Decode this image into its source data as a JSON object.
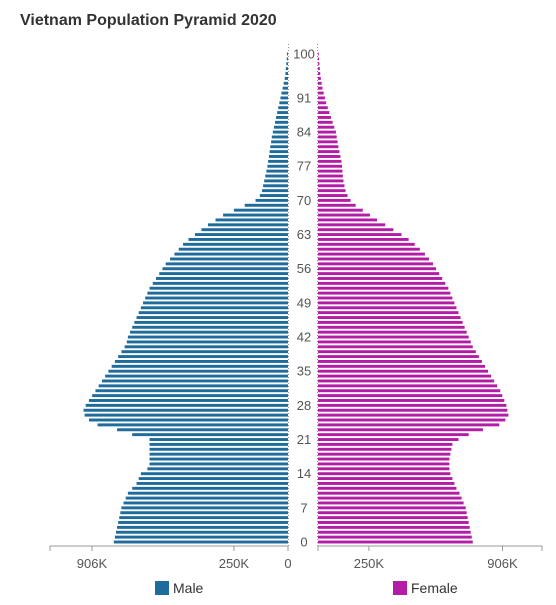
{
  "chart_data": {
    "type": "bar",
    "orientation": "horizontal",
    "title": "Vietnam Population Pyramid 2020",
    "x_tick_labels": {
      "male": [
        "906K",
        "250K",
        "0"
      ],
      "female": [
        "250K",
        "906K"
      ]
    },
    "x_tick_values": {
      "male": [
        906000,
        250000,
        0
      ],
      "female": [
        250000,
        906000
      ]
    },
    "xlim": [
      0,
      1100000
    ],
    "y_tick_labels": [
      "0",
      "7",
      "14",
      "21",
      "28",
      "35",
      "42",
      "49",
      "56",
      "63",
      "70",
      "77",
      "84",
      "91",
      "100"
    ],
    "y_tick_values": [
      0,
      7,
      14,
      21,
      28,
      35,
      42,
      49,
      56,
      63,
      70,
      77,
      84,
      91,
      100
    ],
    "ages": [
      0,
      1,
      2,
      3,
      4,
      5,
      6,
      7,
      8,
      9,
      10,
      11,
      12,
      13,
      14,
      15,
      16,
      17,
      18,
      19,
      20,
      21,
      22,
      23,
      24,
      25,
      26,
      27,
      28,
      29,
      30,
      31,
      32,
      33,
      34,
      35,
      36,
      37,
      38,
      39,
      40,
      41,
      42,
      43,
      44,
      45,
      46,
      47,
      48,
      49,
      50,
      51,
      52,
      53,
      54,
      55,
      56,
      57,
      58,
      59,
      60,
      61,
      62,
      63,
      64,
      65,
      66,
      67,
      68,
      69,
      70,
      71,
      72,
      73,
      74,
      75,
      76,
      77,
      78,
      79,
      80,
      81,
      82,
      83,
      84,
      85,
      86,
      87,
      88,
      89,
      90,
      91,
      92,
      93,
      94,
      95,
      96,
      97,
      98,
      99,
      100
    ],
    "legend": {
      "position": "bottom",
      "entries": [
        "Male",
        "Female"
      ]
    },
    "series": [
      {
        "name": "Male",
        "color": "#1f6b9b",
        "values": [
          805000,
          800000,
          795000,
          790000,
          785000,
          780000,
          775000,
          770000,
          760000,
          750000,
          740000,
          720000,
          700000,
          690000,
          680000,
          650000,
          640000,
          640000,
          640000,
          640000,
          640000,
          640000,
          720000,
          790000,
          880000,
          920000,
          940000,
          945000,
          935000,
          920000,
          905000,
          890000,
          875000,
          860000,
          845000,
          830000,
          815000,
          800000,
          785000,
          770000,
          755000,
          745000,
          740000,
          730000,
          720000,
          710000,
          700000,
          690000,
          680000,
          670000,
          660000,
          650000,
          640000,
          625000,
          610000,
          595000,
          580000,
          565000,
          545000,
          525000,
          505000,
          485000,
          460000,
          430000,
          400000,
          370000,
          335000,
          300000,
          250000,
          200000,
          150000,
          130000,
          120000,
          115000,
          110000,
          105000,
          100000,
          95000,
          92000,
          88000,
          85000,
          82000,
          78000,
          75000,
          70000,
          65000,
          60000,
          55000,
          50000,
          45000,
          40000,
          35000,
          30000,
          25000,
          20000,
          15000,
          12000,
          10000,
          8000,
          6000,
          5000
        ]
      },
      {
        "name": "Female",
        "color": "#b31da6",
        "values": [
          760000,
          755000,
          750000,
          745000,
          740000,
          735000,
          730000,
          725000,
          715000,
          705000,
          695000,
          680000,
          670000,
          660000,
          650000,
          645000,
          645000,
          645000,
          650000,
          655000,
          660000,
          690000,
          740000,
          810000,
          890000,
          920000,
          935000,
          930000,
          925000,
          915000,
          905000,
          895000,
          880000,
          865000,
          850000,
          835000,
          820000,
          805000,
          790000,
          775000,
          760000,
          750000,
          740000,
          730000,
          720000,
          710000,
          700000,
          690000,
          680000,
          670000,
          660000,
          650000,
          640000,
          625000,
          610000,
          595000,
          580000,
          565000,
          545000,
          525000,
          500000,
          475000,
          445000,
          410000,
          370000,
          330000,
          290000,
          255000,
          220000,
          185000,
          160000,
          145000,
          135000,
          130000,
          125000,
          122000,
          120000,
          118000,
          115000,
          110000,
          105000,
          100000,
          96000,
          92000,
          88000,
          80000,
          72000,
          64000,
          56000,
          48000,
          40000,
          34000,
          28000,
          22000,
          18000,
          14000,
          11000,
          9000,
          7000,
          5000,
          4000
        ]
      }
    ]
  }
}
